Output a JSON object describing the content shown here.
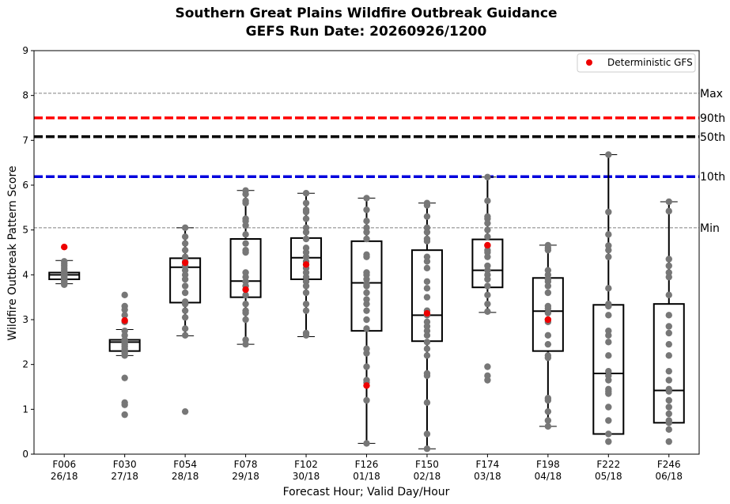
{
  "chart_data": {
    "type": "box",
    "title": "Southern Great Plains Wildfire Outbreak Guidance",
    "subtitle": "GEFS Run Date: 20260926/1200",
    "xlabel": "Forecast Hour; Valid Day/Hour",
    "ylabel": "Wildfire Outbreak Pattern Score",
    "ylim": [
      0,
      9
    ],
    "yticks": [
      0,
      1,
      2,
      3,
      4,
      5,
      6,
      7,
      8,
      9
    ],
    "grid": false,
    "legend": {
      "position": "top-right",
      "entries": [
        {
          "label": "Deterministic GFS",
          "color": "#ee0000",
          "marker": "circle"
        }
      ]
    },
    "categories": [
      {
        "hour": "F006",
        "valid": "26/18"
      },
      {
        "hour": "F030",
        "valid": "27/18"
      },
      {
        "hour": "F054",
        "valid": "28/18"
      },
      {
        "hour": "F078",
        "valid": "29/18"
      },
      {
        "hour": "F102",
        "valid": "30/18"
      },
      {
        "hour": "F126",
        "valid": "01/18"
      },
      {
        "hour": "F150",
        "valid": "02/18"
      },
      {
        "hour": "F174",
        "valid": "03/18"
      },
      {
        "hour": "F198",
        "valid": "04/18"
      },
      {
        "hour": "F222",
        "valid": "05/18"
      },
      {
        "hour": "F246",
        "valid": "06/18"
      }
    ],
    "reference_lines": [
      {
        "label": "Max",
        "value": 8.05,
        "color": "#808080",
        "style": "dashed-thin"
      },
      {
        "label": "90th",
        "value": 7.5,
        "color": "#ff0000",
        "style": "dashed-thick"
      },
      {
        "label": "50th",
        "value": 7.08,
        "color": "#000000",
        "style": "dashed-thick"
      },
      {
        "label": "10th",
        "value": 6.19,
        "color": "#0000dd",
        "style": "dashed-thick"
      },
      {
        "label": "Min",
        "value": 5.05,
        "color": "#808080",
        "style": "dashed-thin"
      }
    ],
    "boxes": [
      {
        "whisker_low": 3.8,
        "q1": 3.9,
        "median": 4.0,
        "q3": 4.05,
        "whisker_high": 4.32
      },
      {
        "whisker_low": 2.2,
        "q1": 2.3,
        "median": 2.5,
        "q3": 2.55,
        "whisker_high": 2.78
      },
      {
        "whisker_low": 2.64,
        "q1": 3.38,
        "median": 4.17,
        "q3": 4.37,
        "whisker_high": 5.05
      },
      {
        "whisker_low": 2.45,
        "q1": 3.5,
        "median": 3.86,
        "q3": 4.8,
        "whisker_high": 5.88
      },
      {
        "whisker_low": 2.62,
        "q1": 3.9,
        "median": 4.38,
        "q3": 4.82,
        "whisker_high": 5.82
      },
      {
        "whisker_low": 0.24,
        "q1": 2.75,
        "median": 3.82,
        "q3": 4.75,
        "whisker_high": 5.71
      },
      {
        "whisker_low": 0.12,
        "q1": 2.52,
        "median": 3.1,
        "q3": 4.55,
        "whisker_high": 5.6
      },
      {
        "whisker_low": 3.16,
        "q1": 3.72,
        "median": 4.1,
        "q3": 4.79,
        "whisker_high": 6.18
      },
      {
        "whisker_low": 0.62,
        "q1": 2.3,
        "median": 3.19,
        "q3": 3.93,
        "whisker_high": 4.66
      },
      {
        "whisker_low": 0.45,
        "q1": 0.45,
        "median": 1.8,
        "q3": 3.33,
        "whisker_high": 6.68
      },
      {
        "whisker_low": 0.7,
        "q1": 0.7,
        "median": 1.42,
        "q3": 3.35,
        "whisker_high": 5.63
      }
    ],
    "members": [
      [
        4.3,
        4.25,
        4.2,
        4.15,
        4.1,
        4.05,
        4.02,
        4.0,
        3.98,
        3.95,
        3.93,
        3.9,
        3.88,
        3.85,
        3.82,
        3.8,
        3.78
      ],
      [
        3.55,
        3.3,
        3.22,
        3.1,
        2.95,
        2.75,
        2.65,
        2.55,
        2.5,
        2.45,
        2.4,
        2.35,
        2.3,
        2.25,
        2.2,
        1.7,
        1.15,
        1.1,
        0.88
      ],
      [
        5.05,
        4.85,
        4.7,
        4.55,
        4.4,
        4.3,
        4.2,
        4.1,
        4.0,
        3.9,
        3.75,
        3.6,
        3.4,
        3.35,
        3.2,
        3.05,
        2.8,
        2.65,
        0.95
      ],
      [
        5.88,
        5.8,
        5.65,
        5.6,
        5.25,
        5.2,
        5.1,
        4.9,
        4.7,
        4.55,
        4.5,
        4.05,
        3.95,
        3.85,
        3.75,
        3.55,
        3.35,
        3.2,
        3.15,
        3.0,
        2.55,
        2.45
      ],
      [
        5.82,
        5.6,
        5.45,
        5.4,
        5.25,
        5.05,
        4.95,
        4.8,
        4.6,
        4.5,
        4.4,
        4.3,
        4.15,
        4.05,
        3.95,
        3.85,
        3.75,
        3.6,
        3.35,
        3.2,
        2.7,
        2.65
      ],
      [
        5.71,
        5.45,
        5.2,
        5.05,
        4.95,
        4.8,
        4.45,
        4.4,
        4.05,
        4.0,
        3.9,
        3.8,
        3.75,
        3.6,
        3.45,
        3.35,
        3.2,
        3.0,
        2.8,
        2.35,
        2.25,
        1.95,
        1.65,
        1.6,
        1.2,
        0.24
      ],
      [
        5.6,
        5.55,
        5.3,
        5.05,
        4.95,
        4.8,
        4.75,
        4.4,
        4.3,
        4.15,
        3.85,
        3.7,
        3.5,
        3.2,
        3.1,
        2.95,
        2.85,
        2.75,
        2.65,
        2.5,
        2.35,
        2.2,
        1.8,
        1.75,
        1.15,
        0.45,
        0.12
      ],
      [
        6.18,
        5.65,
        5.3,
        5.25,
        5.15,
        5.0,
        4.85,
        4.65,
        4.55,
        4.5,
        4.4,
        4.2,
        4.1,
        4.0,
        3.9,
        3.75,
        3.55,
        3.35,
        3.18,
        1.95,
        1.75,
        1.65
      ],
      [
        4.66,
        4.6,
        4.55,
        4.1,
        4.0,
        3.9,
        3.85,
        3.75,
        3.6,
        3.3,
        3.25,
        3.15,
        3.0,
        2.95,
        2.65,
        2.45,
        2.2,
        2.15,
        1.25,
        1.2,
        0.95,
        0.75,
        0.62
      ],
      [
        6.68,
        5.4,
        4.9,
        4.65,
        4.55,
        4.4,
        3.7,
        3.35,
        3.3,
        3.1,
        2.75,
        2.65,
        2.5,
        2.2,
        1.85,
        1.75,
        1.65,
        1.45,
        1.4,
        1.35,
        1.05,
        0.75,
        0.45,
        0.28
      ],
      [
        5.63,
        5.42,
        4.35,
        4.2,
        4.05,
        3.95,
        3.55,
        3.1,
        2.85,
        2.7,
        2.45,
        2.2,
        1.85,
        1.65,
        1.45,
        1.4,
        1.2,
        1.05,
        0.9,
        0.75,
        0.7,
        0.55,
        0.28
      ]
    ],
    "deterministic": [
      4.62,
      2.98,
      4.27,
      3.67,
      4.23,
      1.53,
      3.14,
      4.66,
      3.0,
      null,
      null
    ],
    "colors": {
      "member": "#777777",
      "deterministic": "#ee0000",
      "box": "#000000"
    }
  }
}
